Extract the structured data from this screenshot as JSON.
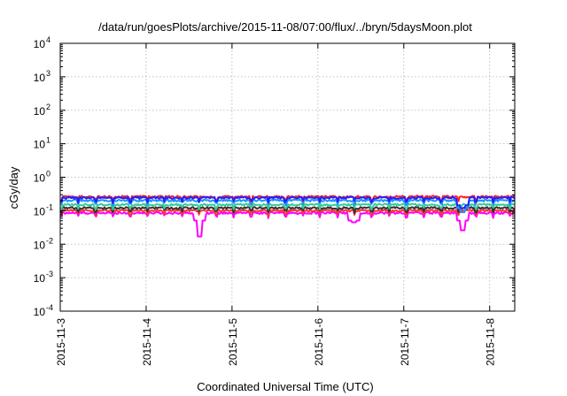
{
  "chart_data": {
    "type": "line",
    "title": "/data/run/goesPlots/archive/2015-11-08/07:00/flux/../bryn/5daysMoon.plot",
    "xlabel": "Coordinated Universal Time (UTC)",
    "ylabel": "cGy/day",
    "yscale": "log",
    "ylim": [
      0.0001,
      10000
    ],
    "xlim": [
      "2015-11-03T00:00",
      "2015-11-08T07:00"
    ],
    "grid": true,
    "x_ticks": [
      "2015-11-3",
      "2015-11-4",
      "2015-11-5",
      "2015-11-6",
      "2015-11-7",
      "2015-11-8"
    ],
    "y_ticks": [
      {
        "base": "10",
        "exp": "-4"
      },
      {
        "base": "10",
        "exp": "-3"
      },
      {
        "base": "10",
        "exp": "-2"
      },
      {
        "base": "10",
        "exp": "-1"
      },
      {
        "base": "10",
        "exp": "0"
      },
      {
        "base": "10",
        "exp": "1"
      },
      {
        "base": "10",
        "exp": "2"
      },
      {
        "base": "10",
        "exp": "3"
      },
      {
        "base": "10",
        "exp": "4"
      }
    ],
    "series": [
      {
        "color": "#ff00ff",
        "level": 0.085,
        "dips": [
          [
            "2015-11-04T15:00",
            0.017
          ],
          [
            "2015-11-07T16:30",
            0.026
          ],
          [
            "2015-11-06T10:00",
            0.045
          ]
        ]
      },
      {
        "color": "#ff3333",
        "level": 0.1,
        "dips": []
      },
      {
        "color": "#333333",
        "level": 0.12,
        "dips": []
      },
      {
        "color": "#33cc99",
        "level": 0.15,
        "dips": []
      },
      {
        "color": "#1f8fff",
        "level": 0.2,
        "dips": [
          [
            "2015-11-07T16:30",
            0.09
          ]
        ]
      },
      {
        "color": "#ff2222",
        "level": 0.26,
        "dips": []
      },
      {
        "color": "#2020ff",
        "level": 0.24,
        "dips": [
          [
            "2015-11-07T16:30",
            0.12
          ]
        ]
      }
    ]
  }
}
